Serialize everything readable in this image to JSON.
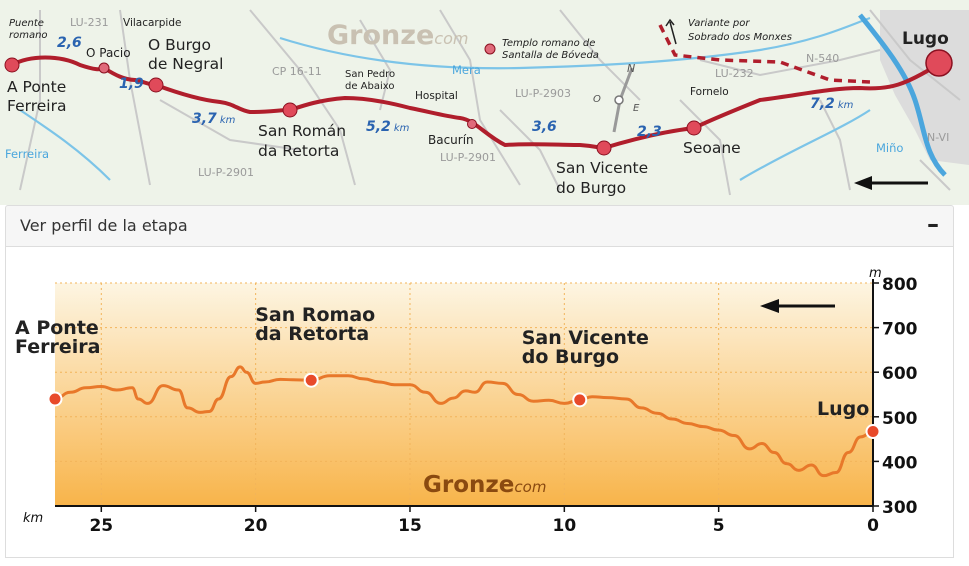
{
  "map": {
    "brand": "Gronze",
    "brand_suffix": "com",
    "towns": [
      {
        "name": "A Ponte\nFerreira"
      },
      {
        "name": "O Burgo\nde Negral"
      },
      {
        "name": "San Román\nda Retorta"
      },
      {
        "name": "San Vicente\ndo Burgo"
      },
      {
        "name": "Seoane"
      },
      {
        "name": "Lugo"
      }
    ],
    "places": [
      "Puente\nromano",
      "O Pacio",
      "Vilacarpide",
      "San Pedro\nde Abaixo",
      "Hospital",
      "Bacurín",
      "Fornelo"
    ],
    "roads": [
      "LU-231",
      "CP 16-11",
      "LU-P-2901",
      "LU-P-2903",
      "LU-P-2901",
      "LU-232",
      "N-540",
      "N-VI"
    ],
    "rivers": [
      "Mera",
      "Ferreira",
      "Miño"
    ],
    "notes": [
      "Templo romano de\nSantalla de Bóveda",
      "Variante por\nSobrado dos Monxes"
    ],
    "distances": [
      {
        "value": "2,6"
      },
      {
        "value": "1,9"
      },
      {
        "value": "3,7",
        "unit": "km"
      },
      {
        "value": "5,2",
        "unit": "km"
      },
      {
        "value": "3,6"
      },
      {
        "value": "2,3"
      },
      {
        "value": "7,2",
        "unit": "km"
      }
    ],
    "compass": {
      "n": "N",
      "o": "O",
      "e": "E"
    },
    "colors": {
      "route": "#b01e2c",
      "river": "#7cc4e8",
      "road": "#c8c8c8",
      "land": "#eef4e8"
    }
  },
  "panel": {
    "title": "Ver perfil de la etapa",
    "toggle": "–"
  },
  "chart_data": {
    "type": "area",
    "direction": "arrow pointing left",
    "brand": "Gronze",
    "brand_suffix": "com",
    "xlabel": "km",
    "ylabel": "m",
    "xlim": [
      26.5,
      0
    ],
    "ylim": [
      300,
      800
    ],
    "x_ticks": [
      "25",
      "20",
      "15",
      "10",
      "5",
      "0"
    ],
    "y_ticks": [
      "800",
      "700",
      "600",
      "500",
      "400",
      "300"
    ],
    "x": [
      26.5,
      26,
      25.5,
      25,
      24.5,
      24,
      23.8,
      23.5,
      23,
      22.5,
      22.2,
      21.8,
      21.5,
      21.2,
      20.8,
      20.5,
      20.3,
      20,
      19.7,
      19.2,
      18.8,
      18.2,
      17.6,
      17,
      16.5,
      16,
      15.5,
      15,
      14.5,
      14,
      13.6,
      13.2,
      12.9,
      12.5,
      12,
      11.5,
      11,
      10.5,
      10,
      9.5,
      9.1,
      8.6,
      8,
      7.5,
      7,
      6.5,
      6,
      5.5,
      5,
      4.5,
      4,
      3.6,
      3.2,
      2.8,
      2.4,
      2,
      1.6,
      1.2,
      0.8,
      0.4,
      0
    ],
    "series": [
      {
        "values": [
          540,
          555,
          565,
          568,
          560,
          565,
          540,
          530,
          570,
          560,
          520,
          510,
          512,
          540,
          590,
          612,
          600,
          575,
          578,
          584,
          583,
          582,
          592,
          592,
          585,
          578,
          572,
          572,
          555,
          530,
          542,
          558,
          555,
          578,
          575,
          550,
          535,
          537,
          530,
          538,
          545,
          543,
          540,
          520,
          508,
          495,
          485,
          478,
          470,
          458,
          428,
          440,
          420,
          395,
          380,
          392,
          368,
          375,
          420,
          455,
          467
        ]
      }
    ],
    "markers": [
      {
        "label": "A Ponte\nFerreira",
        "x": 26.5,
        "y": 540
      },
      {
        "label": "San Romao\nda Retorta",
        "x": 18.2,
        "y": 582
      },
      {
        "label": "San Vicente\ndo Burgo",
        "x": 9.5,
        "y": 538
      },
      {
        "label": "Lugo",
        "x": 0,
        "y": 467
      }
    ],
    "grid": true,
    "colors": {
      "line": "#e8782a",
      "fill_top": "#fdf5e2",
      "fill_bottom": "#f8b44a",
      "marker": "#e84a2a",
      "grid": "#f2b45a"
    }
  }
}
